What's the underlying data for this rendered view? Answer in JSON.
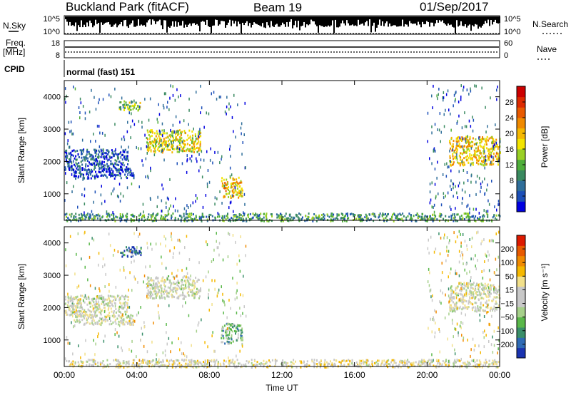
{
  "header": {
    "station": "Buckland Park (fitACF)",
    "beam": "Beam 19",
    "date": "01/Sep/2017"
  },
  "noise_panel": {
    "left_label": "N.Sky",
    "left_ticks": [
      "10^5",
      "10^0"
    ],
    "right_ticks": [
      "10^5",
      "10^0"
    ],
    "right_label": "N.Search"
  },
  "freq_panel": {
    "left_label_1": "Freq.",
    "left_label_2": "[MHz]",
    "left_ticks": [
      "18",
      "8"
    ],
    "right_ticks": [
      "60",
      "0"
    ],
    "right_label": "Nave"
  },
  "cpid_panel": {
    "label": "CPID",
    "value": "normal (fast) 151"
  },
  "chart_data": [
    {
      "type": "heatmap",
      "quantity": "Power",
      "xlabel": "Time UT",
      "ylabel": "Slant Range [km]",
      "x_range_hours": [
        0,
        24
      ],
      "x_ticks": [
        "00:00",
        "04:00",
        "08:00",
        "12:00",
        "16:00",
        "20:00",
        "00:00"
      ],
      "ylim_km": [
        180,
        4500
      ],
      "y_ticks": [
        1000,
        2000,
        3000,
        4000
      ],
      "colorbar": {
        "label": "Power [dB]",
        "ticks": [
          "4",
          "8",
          "12",
          "16",
          "20",
          "24",
          "28"
        ],
        "range": [
          0,
          30
        ],
        "colors": [
          "#0000e0",
          "#1c4fb8",
          "#2f6e9a",
          "#3a8a60",
          "#4fae3a",
          "#9ad025",
          "#f3e400",
          "#f5b800",
          "#f08a00",
          "#e85a00",
          "#dd2a00",
          "#cc0000"
        ]
      },
      "echo_regions": [
        {
          "t_start": 0.0,
          "t_end": 24.0,
          "r_min": 180,
          "r_max": 420,
          "level": 0.3
        },
        {
          "t_start": 0.0,
          "t_end": 3.5,
          "r_min": 1750,
          "r_max": 2400,
          "level": 0.15
        },
        {
          "t_start": 0.5,
          "t_end": 3.8,
          "r_min": 1500,
          "r_max": 1800,
          "level": 0.12
        },
        {
          "t_start": 3.0,
          "t_end": 4.2,
          "r_min": 3600,
          "r_max": 3900,
          "level": 0.45
        },
        {
          "t_start": 4.5,
          "t_end": 7.5,
          "r_min": 2300,
          "r_max": 3000,
          "level": 0.55
        },
        {
          "t_start": 8.6,
          "t_end": 9.8,
          "r_min": 900,
          "r_max": 1550,
          "level": 0.6
        },
        {
          "t_start": 21.2,
          "t_end": 24.0,
          "r_min": 1900,
          "r_max": 2800,
          "level": 0.6
        }
      ]
    },
    {
      "type": "heatmap",
      "quantity": "Velocity",
      "xlabel": "Time UT",
      "ylabel": "Slant Range [km]",
      "x_range_hours": [
        0,
        24
      ],
      "x_ticks": [
        "00:00",
        "04:00",
        "08:00",
        "12:00",
        "16:00",
        "20:00",
        "00:00"
      ],
      "ylim_km": [
        180,
        4500
      ],
      "y_ticks": [
        1000,
        2000,
        3000,
        4000
      ],
      "colorbar": {
        "label": "Velocity [m s⁻¹]",
        "ticks": [
          "200",
          "100",
          "50",
          "15",
          "−15",
          "−50",
          "−100",
          "−200"
        ],
        "range": [
          -250,
          250
        ],
        "colors": [
          "#1a33b0",
          "#2f6bb5",
          "#3a8f6a",
          "#5ab84a",
          "#a6d08a",
          "#c8c8c8",
          "#c8c8c8",
          "#f2e08a",
          "#f5b800",
          "#f08a00",
          "#e85a00",
          "#dd1a00"
        ]
      },
      "echo_regions": [
        {
          "t_start": 0.0,
          "t_end": 24.0,
          "r_min": 180,
          "r_max": 420,
          "level": 0.55
        },
        {
          "t_start": 0.0,
          "t_end": 3.5,
          "r_min": 1750,
          "r_max": 2400,
          "level": 0.5
        },
        {
          "t_start": 0.5,
          "t_end": 3.8,
          "r_min": 1500,
          "r_max": 1800,
          "level": 0.5
        },
        {
          "t_start": 3.0,
          "t_end": 4.2,
          "r_min": 3600,
          "r_max": 3900,
          "level": 0.1
        },
        {
          "t_start": 4.5,
          "t_end": 7.5,
          "r_min": 2300,
          "r_max": 3000,
          "level": 0.5
        },
        {
          "t_start": 8.6,
          "t_end": 9.8,
          "r_min": 900,
          "r_max": 1550,
          "level": 0.3
        },
        {
          "t_start": 21.2,
          "t_end": 24.0,
          "r_min": 1900,
          "r_max": 2800,
          "level": 0.5
        }
      ]
    }
  ]
}
